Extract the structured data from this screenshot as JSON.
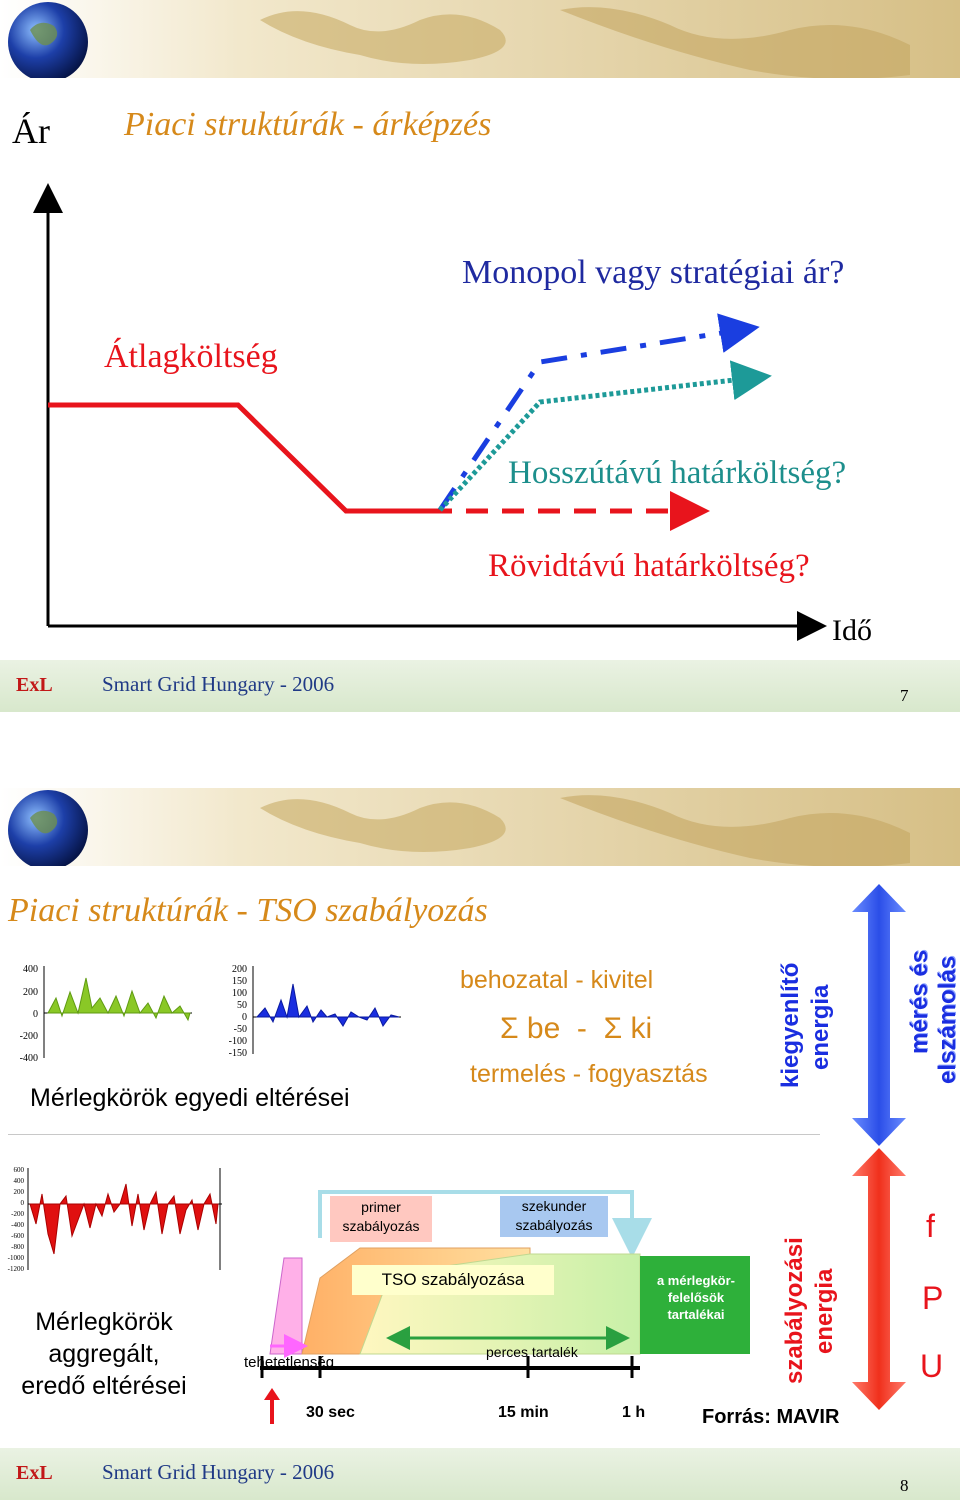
{
  "slide1": {
    "axis_y": "Ár",
    "title": "Piaci struktúrák - árképzés",
    "label_monopol": "Monopol vagy stratégiai ár?",
    "label_atlag": "Átlagköltség",
    "label_hosszu": "Hosszútávú határköltség?",
    "label_rovid": "Rövidtávú határköltség?",
    "axis_x": "Idő",
    "footer": {
      "logo": "ExL",
      "caption": "Smart Grid Hungary - 2006",
      "page": "7"
    }
  },
  "slide2": {
    "title": "Piaci struktúrák - TSO szabályozás",
    "chart1_ticks": [
      "400",
      "200",
      "0",
      "-200",
      "-400"
    ],
    "chart2_ticks": [
      "200",
      "150",
      "100",
      "50",
      "0",
      "-50",
      "-100",
      "-150"
    ],
    "chart3_ticks": [
      "600",
      "400",
      "200",
      "0",
      "-200",
      "-400",
      "-600",
      "-800",
      "-1000",
      "-1200"
    ],
    "merlegkorok_egyedi": "Mérlegkörök egyedi eltérései",
    "behozatal": "behozatal - kivitel",
    "sigma": "Σ be  -  Σ ki",
    "termeles": "termelés - fogyasztás",
    "kiegyenlito": [
      "kiegyenlítő",
      "energia"
    ],
    "meres": [
      "mérés és",
      "elszámolás"
    ],
    "merlegkorok_aggr": [
      "Mérlegkörök",
      "aggregált,",
      "eredő eltérései"
    ],
    "primer": [
      "primer",
      "szabályozás"
    ],
    "szekunder": [
      "szekunder",
      "szabályozás"
    ],
    "tso_szab": "TSO szabályozása",
    "tartalekai": [
      "a mérlegkör-",
      "felelősök",
      "tartalékai"
    ],
    "perces": "perces tartalék",
    "tehetetlenseg": "tehetetlenség",
    "timeline": [
      "30 sec",
      "15 min",
      "1 h"
    ],
    "forras": "Forrás: MAVIR",
    "szab_energia": [
      "szabályozási",
      "energia"
    ],
    "fpu": [
      "f",
      "P",
      "U"
    ],
    "footer": {
      "logo": "ExL",
      "caption": "Smart Grid Hungary - 2006",
      "page": "8"
    }
  },
  "colors": {
    "red": "#e8141c",
    "blue": "#1a3ee0",
    "teal": "#1d9a98",
    "title": "#d6891a",
    "navy": "#203a86",
    "green": "#8ac826"
  }
}
